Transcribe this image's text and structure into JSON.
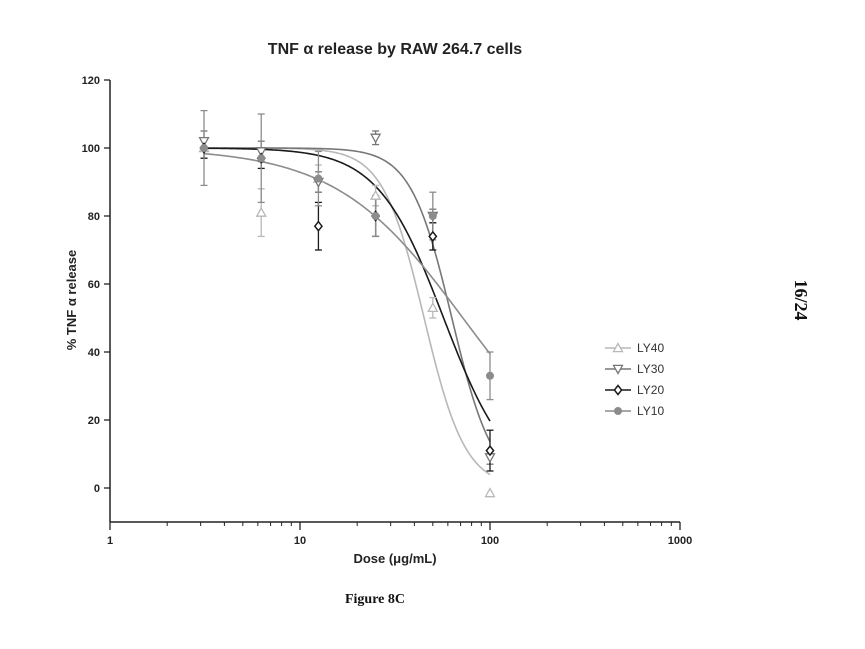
{
  "caption": "Figure 8C",
  "page_number": "16/24",
  "chart_data": {
    "type": "scatter",
    "title": "TNF α release by RAW 264.7 cells",
    "xlabel": "Dose (μg/mL)",
    "ylabel": "% TNF α release",
    "xscale": "log",
    "xlim": [
      1,
      1000
    ],
    "ylim": [
      -10,
      120
    ],
    "xticks": [
      1,
      10,
      100,
      1000
    ],
    "xtick_labels": [
      "1",
      "10",
      "100",
      "1000"
    ],
    "yticks": [
      0,
      20,
      40,
      60,
      80,
      100,
      120
    ],
    "ytick_labels": [
      "0",
      "20",
      "40",
      "60",
      "80",
      "100",
      "120"
    ],
    "grid": false,
    "legend_position": "right",
    "series": [
      {
        "name": "LY40",
        "marker": "triangle-up",
        "color": "#b8b8b8",
        "x": [
          3.125,
          6.25,
          12.5,
          25,
          50,
          100
        ],
        "y": [
          100,
          81,
          91,
          86,
          53,
          -1.5
        ],
        "err": [
          3,
          7,
          4,
          3,
          3,
          0
        ],
        "fit": {
          "top": 100,
          "bottom": 0,
          "ec50": 45,
          "hill": 4
        }
      },
      {
        "name": "LY30",
        "marker": "triangle-down",
        "color": "#777777",
        "x": [
          3.125,
          6.25,
          12.5,
          25,
          50,
          100
        ],
        "y": [
          102,
          99,
          90,
          103,
          80,
          9
        ],
        "err": [
          3,
          3,
          3,
          2,
          2,
          2
        ],
        "fit": {
          "top": 100,
          "bottom": 0,
          "ec50": 63,
          "hill": 4
        }
      },
      {
        "name": "LY20",
        "marker": "diamond",
        "color": "#1a1a1a",
        "x": [
          3.125,
          6.25,
          12.5,
          25,
          50,
          100
        ],
        "y": [
          100,
          97,
          77,
          80,
          74,
          11
        ],
        "err": [
          3,
          3,
          7,
          6,
          4,
          6
        ],
        "fit": {
          "top": 100,
          "bottom": 0,
          "ec50": 57,
          "hill": 2.5
        }
      },
      {
        "name": "LY10",
        "marker": "circle",
        "color": "#8c8c8c",
        "x": [
          3.125,
          6.25,
          12.5,
          25,
          50,
          100
        ],
        "y": [
          100,
          97,
          91,
          80,
          80,
          33
        ],
        "err": [
          11,
          13,
          8,
          6,
          7,
          7
        ],
        "fit": {
          "top": 100,
          "bottom": 0,
          "ec50": 72,
          "hill": 1.3
        }
      }
    ]
  }
}
